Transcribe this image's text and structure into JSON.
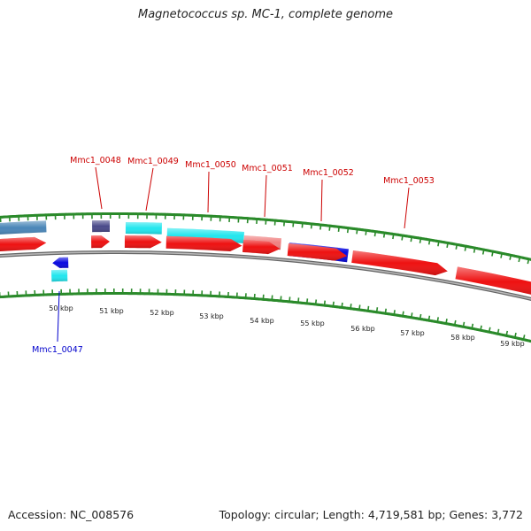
{
  "title": "Magnetococcus sp. MC-1, complete genome",
  "footer": {
    "accession": "Accession: NC_008576",
    "summary": "Topology: circular; Length: 4,719,581 bp; Genes: 3,772"
  },
  "colors": {
    "cds": "#ee1111",
    "backbone": "#888888",
    "tick": "#2a8a2a",
    "label_top": "#cc0000",
    "label_bottom": "#0000cc"
  },
  "ruler_labels": [
    "50 kbp",
    "51 kbp",
    "52 kbp",
    "53 kbp",
    "54 kbp",
    "55 kbp",
    "56 kbp",
    "57 kbp",
    "58 kbp",
    "59 kbp"
  ],
  "gene_labels": {
    "top": [
      "Mmc1_0048",
      "Mmc1_0049",
      "Mmc1_0050",
      "Mmc1_0051",
      "Mmc1_0052",
      "Mmc1_0053"
    ],
    "bottom": [
      "Mmc1_0047"
    ]
  }
}
